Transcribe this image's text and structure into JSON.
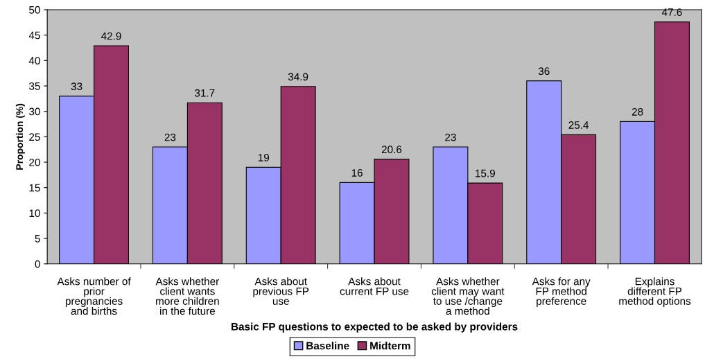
{
  "chart_data": {
    "type": "bar",
    "categories": [
      "Asks number of\nprior\npregnancies\nand births",
      "Asks whether\nclient wants\nmore children\nin the future",
      "Asks about\nprevious FP\nuse",
      "Asks about\ncurrent FP use",
      "Asks whether\nclient may want\nto use /change\na method",
      "Asks for any\nFP method\npreference",
      "Explains\ndifferent FP\nmethod options"
    ],
    "series": [
      {
        "name": "Baseline",
        "color": "#9999ff",
        "values": [
          33,
          23,
          19,
          16,
          23,
          36,
          28
        ]
      },
      {
        "name": "Midterm",
        "color": "#993366",
        "values": [
          42.9,
          31.7,
          34.9,
          20.6,
          15.9,
          25.4,
          47.6
        ]
      }
    ],
    "xlabel": "Basic FP questions to expected to be asked by providers",
    "ylabel": "Proportion (%)",
    "ylim": [
      0,
      50
    ],
    "yticks": [
      0,
      5,
      10,
      15,
      20,
      25,
      30,
      35,
      40,
      45,
      50
    ],
    "data_labels": true,
    "legend": "bottom",
    "grid": false
  }
}
